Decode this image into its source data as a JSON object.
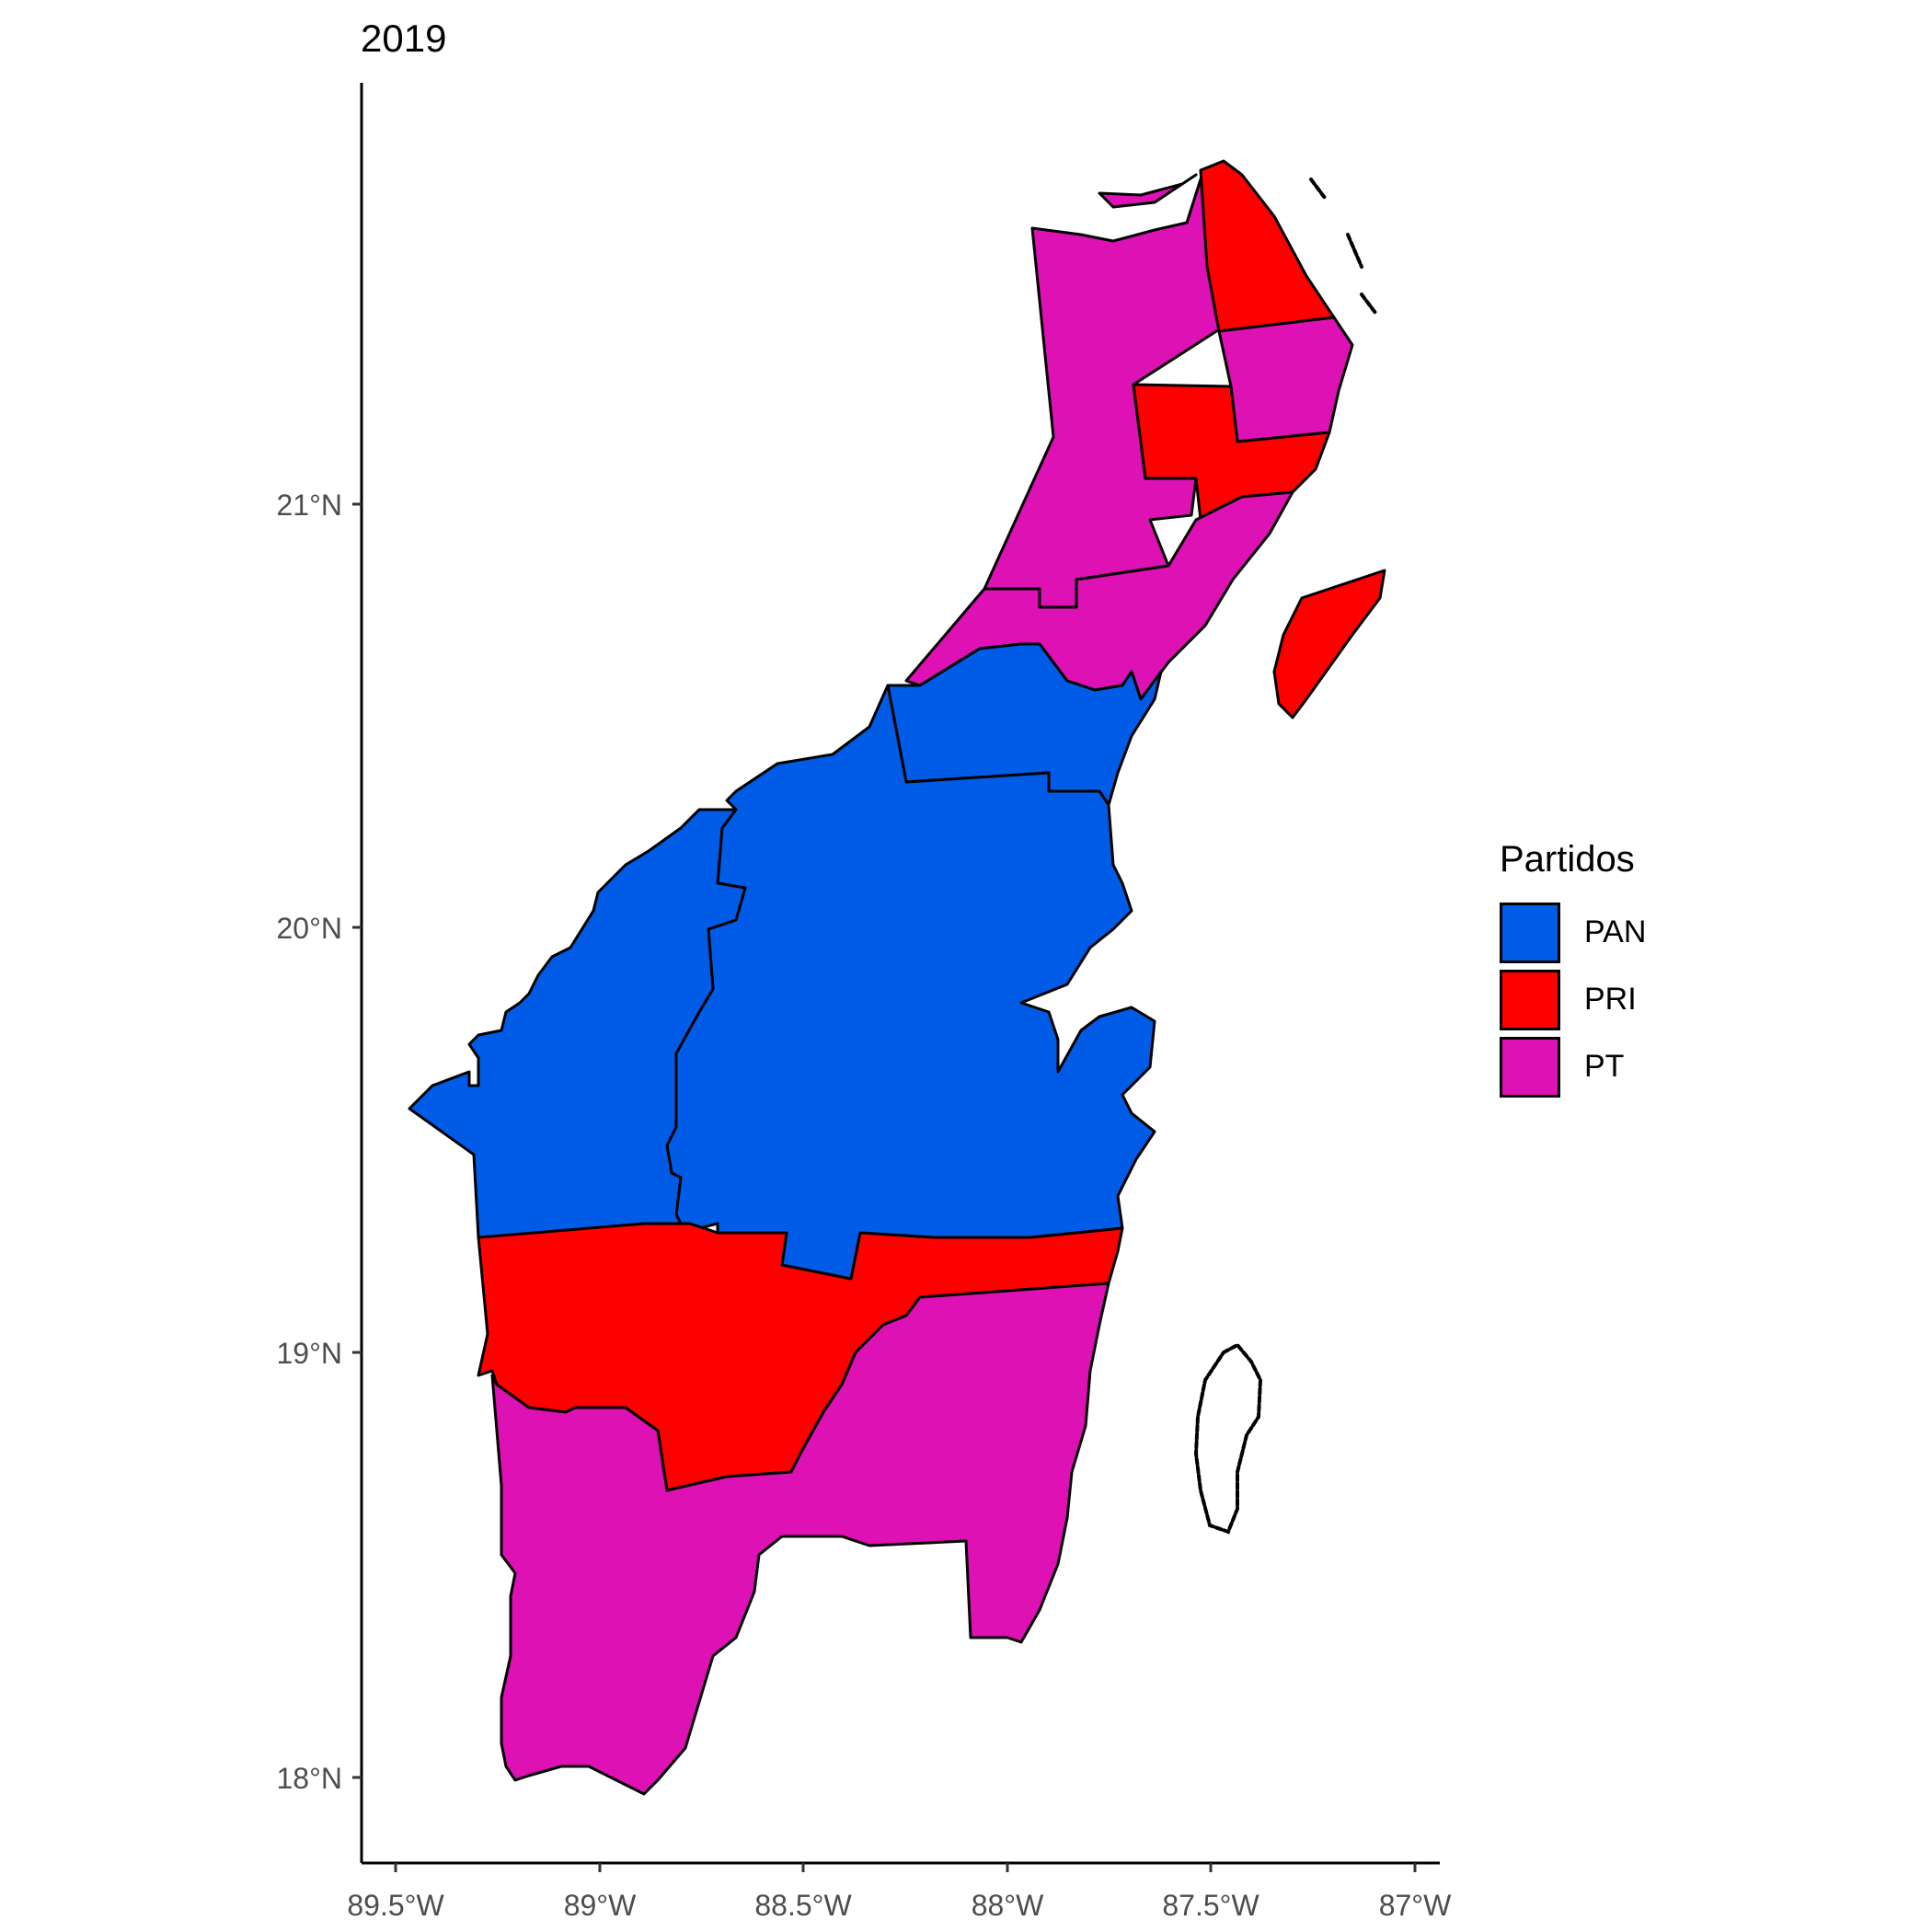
{
  "title": "2019",
  "legend": {
    "title": "Partidos",
    "items": [
      {
        "label": "PAN",
        "color": "#005CE6"
      },
      {
        "label": "PRI",
        "color": "#FF0000"
      },
      {
        "label": "PT",
        "color": "#DD11B4"
      }
    ]
  },
  "axes": {
    "x_ticks": [
      "89.5°W",
      "89°W",
      "88.5°W",
      "88°W",
      "87.5°W",
      "87°W"
    ],
    "y_ticks": [
      "21°N",
      "20°N",
      "19°N",
      "18°N"
    ]
  },
  "chart_data": {
    "type": "choropleth",
    "title": "2019",
    "legend_title": "Partidos",
    "legend_position": "right",
    "categories": [
      "PAN",
      "PRI",
      "PT"
    ],
    "colors": {
      "PAN": "#005CE6",
      "PRI": "#FF0000",
      "PT": "#DD11B4"
    },
    "x_ticks": [
      "89.5°W",
      "89°W",
      "88.5°W",
      "88°W",
      "87.5°W",
      "87°W"
    ],
    "y_ticks": [
      "21°N",
      "20°N",
      "19°N",
      "18°N"
    ],
    "xlim": [
      -89.6,
      -86.95
    ],
    "ylim": [
      17.85,
      21.85
    ],
    "grid": false,
    "regions_by_party": {
      "PAN": 3,
      "PRI": 5,
      "PT": 5
    }
  }
}
